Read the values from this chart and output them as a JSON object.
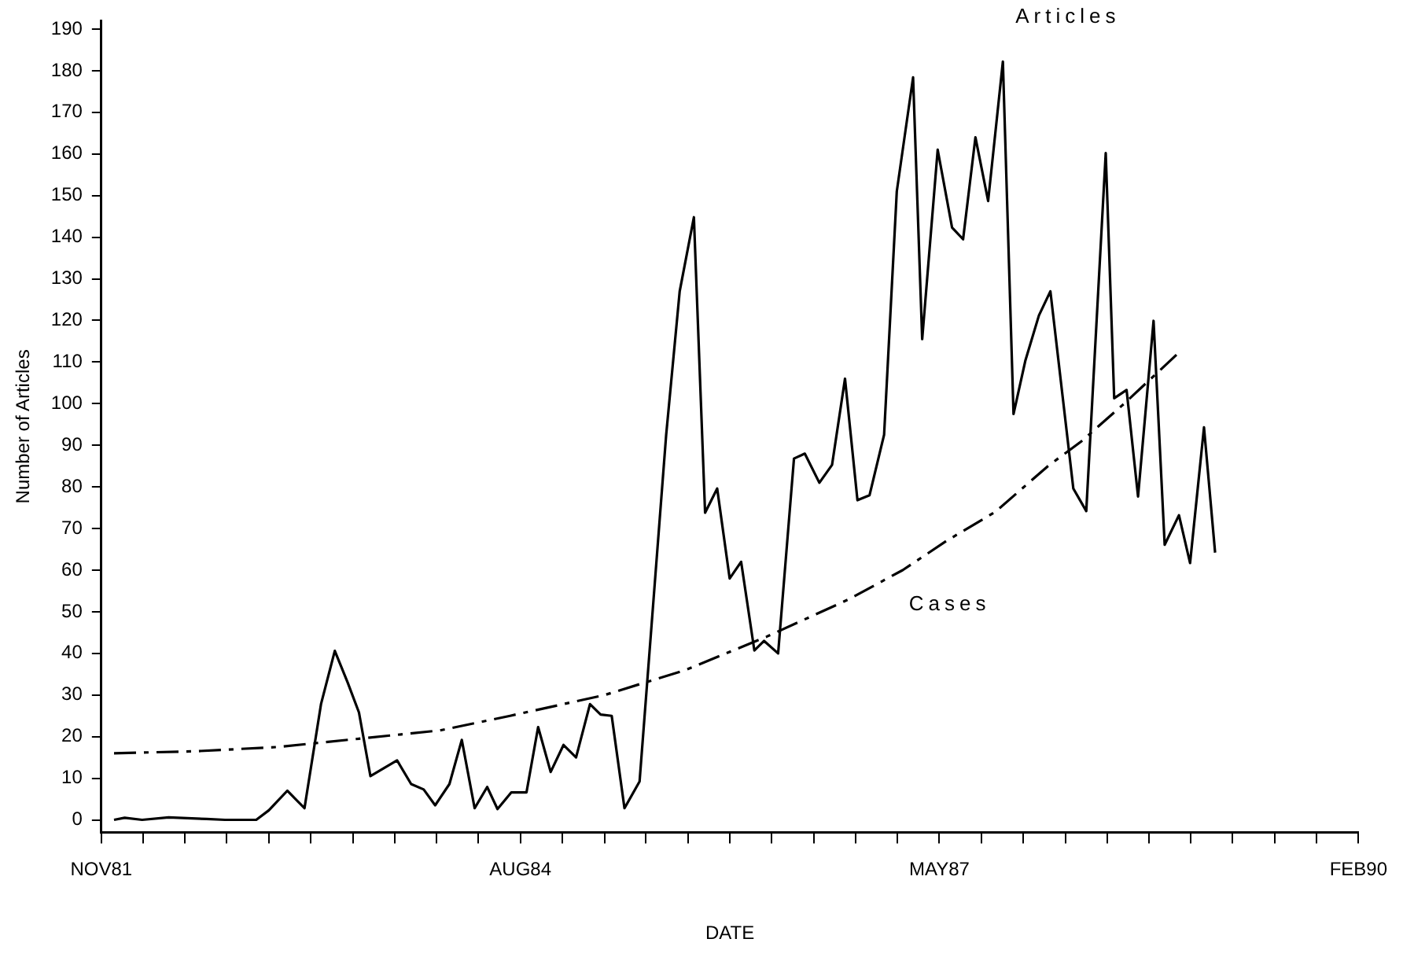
{
  "chart_data": {
    "type": "line",
    "xlabel": "DATE",
    "ylabel": "Number of Articles",
    "xlim": [
      "1981-11",
      "1990-02"
    ],
    "xticks": [
      {
        "value": "1981-11",
        "label": "NOV81"
      },
      {
        "value": "1982-02-10",
        "label": null
      },
      {
        "value": "1982-05-19",
        "label": null
      },
      {
        "value": "1982-08-28",
        "label": null
      },
      {
        "value": "1982-12-07",
        "label": null
      },
      {
        "value": "1983-03-16",
        "label": null
      },
      {
        "value": "1983-06-25",
        "label": null
      },
      {
        "value": "1983-10-04",
        "label": null
      },
      {
        "value": "1984-01-13",
        "label": null
      },
      {
        "value": "1984-04-22",
        "label": null
      },
      {
        "value": "1984-08",
        "label": "AUG84"
      },
      {
        "value": "1984-11-10",
        "label": null
      },
      {
        "value": "1985-02-19",
        "label": null
      },
      {
        "value": "1985-05-28",
        "label": null
      },
      {
        "value": "1985-09-07",
        "label": null
      },
      {
        "value": "1985-12-16",
        "label": null
      },
      {
        "value": "1986-03-25",
        "label": null
      },
      {
        "value": "1986-07-04",
        "label": null
      },
      {
        "value": "1986-10-13",
        "label": null
      },
      {
        "value": "1987-01-22",
        "label": null
      },
      {
        "value": "1987-05",
        "label": "MAY87"
      },
      {
        "value": "1987-08-10",
        "label": null
      },
      {
        "value": "1987-11-19",
        "label": null
      },
      {
        "value": "1988-02-28",
        "label": null
      },
      {
        "value": "1988-06-07",
        "label": null
      },
      {
        "value": "1988-09-16",
        "label": null
      },
      {
        "value": "1988-12-25",
        "label": null
      },
      {
        "value": "1989-04-04",
        "label": null
      },
      {
        "value": "1989-07-13",
        "label": null
      },
      {
        "value": "1989-10-22",
        "label": null
      },
      {
        "value": "1990-02",
        "label": "FEB90"
      }
    ],
    "ylim": [
      -3,
      192
    ],
    "yticks": [
      0,
      10,
      20,
      30,
      40,
      50,
      60,
      70,
      80,
      90,
      100,
      110,
      120,
      130,
      140,
      150,
      160,
      170,
      180,
      190
    ],
    "grid": false,
    "legend": false,
    "marker": "none",
    "series": [
      {
        "name": "Articles",
        "color": "#000000",
        "line_style": "solid",
        "x": [
          "1981-12-01",
          "1981-12-27",
          "1982-02-07",
          "1982-04-10",
          "1982-07-10",
          "1982-08-24",
          "1982-11-07",
          "1982-12-07",
          "1983-01-21",
          "1983-03-01",
          "1983-04-10",
          "1983-05-13",
          "1983-06-13",
          "1983-07-10",
          "1983-08-07",
          "1983-10-10",
          "1983-11-13",
          "1983-12-13",
          "1984-01-10",
          "1984-02-13",
          "1984-03-13",
          "1984-04-13",
          "1984-05-13",
          "1984-06-07",
          "1984-07-10",
          "1984-08-16",
          "1984-09-13",
          "1984-10-13",
          "1984-11-13",
          "1984-12-13",
          "1985-01-16",
          "1985-02-10",
          "1985-03-07",
          "1985-04-07",
          "1985-05-13",
          "1985-07-16",
          "1985-08-18",
          "1985-09-21",
          "1985-10-18",
          "1985-11-16",
          "1985-12-16",
          "1986-01-13",
          "1986-02-13",
          "1986-03-07",
          "1986-04-10",
          "1986-05-18",
          "1986-06-13",
          "1986-07-18",
          "1986-08-18",
          "1986-09-18",
          "1986-10-18",
          "1986-11-16",
          "1986-12-21",
          "1987-01-21",
          "1987-02-27",
          "1987-03-21",
          "1987-04-27",
          "1987-06-01",
          "1987-06-27",
          "1987-07-27",
          "1987-08-27",
          "1987-10-01",
          "1987-10-27",
          "1987-11-24",
          "1987-12-27",
          "1988-01-24",
          "1988-03-18",
          "1988-04-18",
          "1988-06-04",
          "1988-06-24",
          "1988-07-24",
          "1988-08-21",
          "1988-09-27",
          "1988-10-24",
          "1988-11-27",
          "1988-12-24",
          "1989-01-27",
          "1989-02-21"
        ],
        "values": [
          0,
          0.5,
          0,
          0.6,
          0.2,
          0,
          0,
          2.3,
          7,
          2.8,
          27.8,
          40.6,
          33,
          25.8,
          10.5,
          14.3,
          8.6,
          7.3,
          3.5,
          8.6,
          19.2,
          2.8,
          7.9,
          2.6,
          6.6,
          6.6,
          22.3,
          11.5,
          18,
          15,
          27.8,
          25.3,
          25,
          2.8,
          9.2,
          92.5,
          127,
          144.8,
          73.8,
          79.6,
          58,
          62,
          40.7,
          43,
          40,
          86.8,
          88,
          81,
          85.3,
          106,
          76.8,
          78,
          92.5,
          151,
          178.4,
          115.5,
          161,
          142.3,
          139.5,
          164,
          148.7,
          182.2,
          97.5,
          110.3,
          121.2,
          127,
          79.6,
          74.2,
          160.2,
          101.3,
          103.3,
          77.7,
          119.9,
          66.1,
          73.2,
          61.7,
          94.3,
          64.2
        ]
      },
      {
        "name": "Cases",
        "color": "#000000",
        "line_style": "dashed",
        "x": [
          "1981-12-01",
          "1982-06-16",
          "1982-12-28",
          "1983-07-10",
          "1984-01-22",
          "1984-07-07",
          "1985-02-19",
          "1985-09-01",
          "1986-03-13",
          "1986-09-27",
          "1987-02-04",
          "1987-05-18",
          "1987-09-13",
          "1988-01-18",
          "1988-04-07",
          "1988-07-18",
          "1988-11-24"
        ],
        "values": [
          16,
          16.5,
          17.5,
          19.5,
          21.5,
          25,
          30,
          36,
          44,
          53,
          60,
          67,
          74,
          85,
          91,
          100,
          112
        ]
      }
    ]
  }
}
